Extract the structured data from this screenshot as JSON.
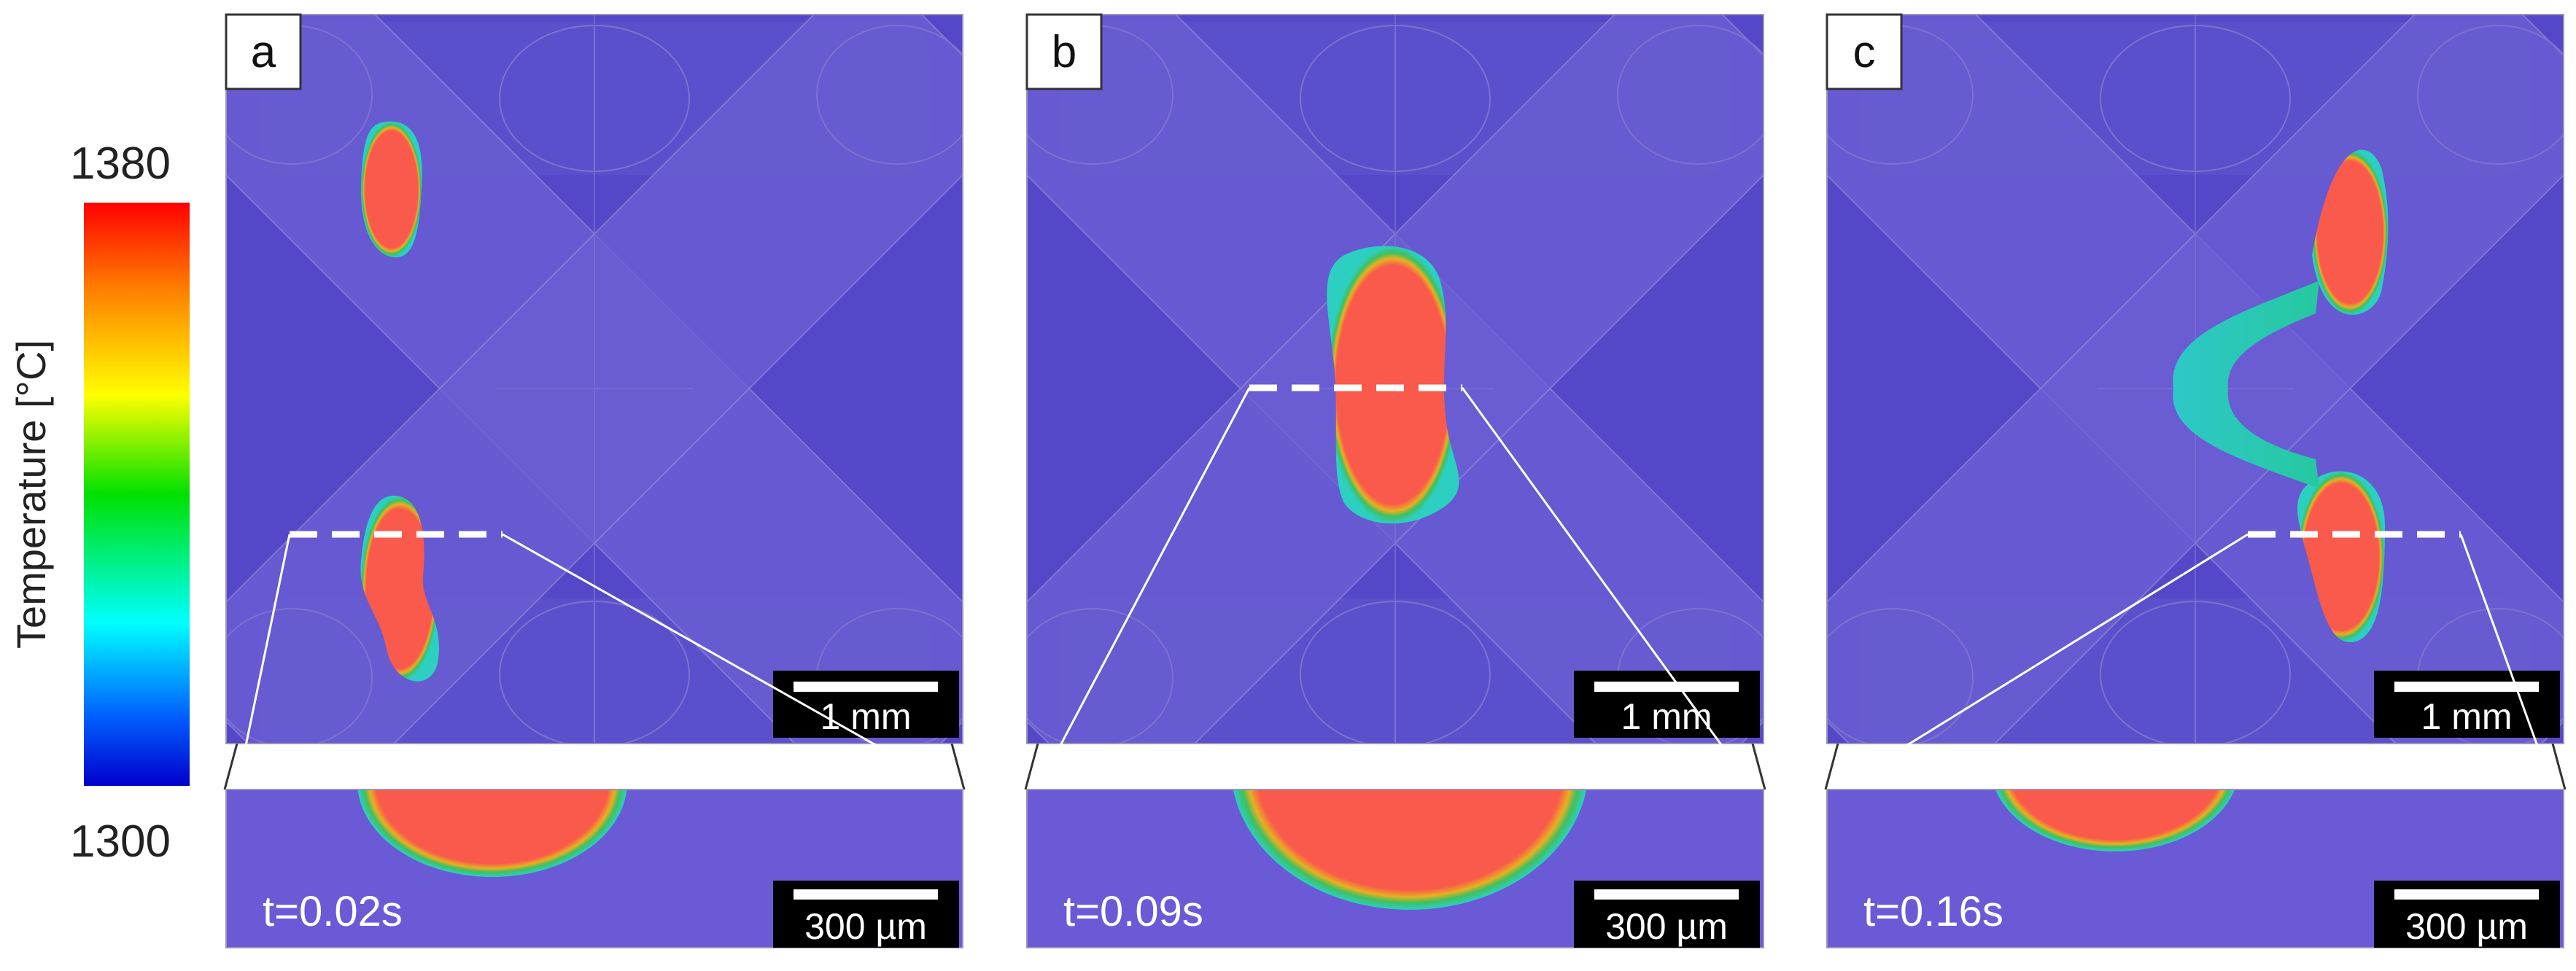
{
  "colorbar": {
    "max_label": "1380",
    "min_label": "1300",
    "title": "Temperature [°C]",
    "stops": [
      "#ff0000",
      "#ff8000",
      "#ffff00",
      "#00e000",
      "#00ffff",
      "#0060ff",
      "#0000cc"
    ]
  },
  "colors": {
    "background": "#5448c8",
    "melt": "#fa5a4b",
    "track": "#6c5fd4",
    "zoom_background": "#6a5ad6"
  },
  "panels": [
    {
      "id": "a",
      "label": "a",
      "time": "t=0.02s",
      "scale_top": "1 mm",
      "scale_bottom": "300 µm"
    },
    {
      "id": "b",
      "label": "b",
      "time": "t=0.09s",
      "scale_top": "1 mm",
      "scale_bottom": "300 µm"
    },
    {
      "id": "c",
      "label": "c",
      "time": "t=0.16s",
      "scale_top": "1 mm",
      "scale_bottom": "300 µm"
    }
  ]
}
